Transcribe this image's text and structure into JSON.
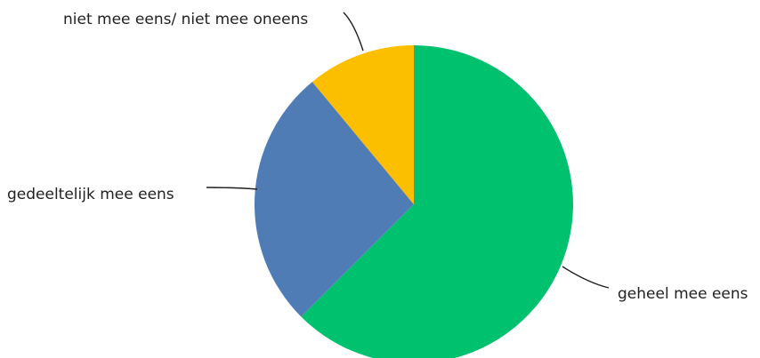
{
  "chart_data": {
    "type": "pie",
    "start_angle_deg": 0,
    "direction": "clockwise",
    "slices": [
      {
        "label": "geheel mee eens",
        "value": 62.5,
        "color": "#00C16E"
      },
      {
        "label": "gedeeltelijk mee eens",
        "value": 26.5,
        "color": "#507CB6"
      },
      {
        "label": "niet mee eens/ niet mee oneens",
        "value": 11.0,
        "color": "#FBBF00"
      }
    ],
    "legend": "none",
    "labels": "outside-with-leader-lines"
  }
}
